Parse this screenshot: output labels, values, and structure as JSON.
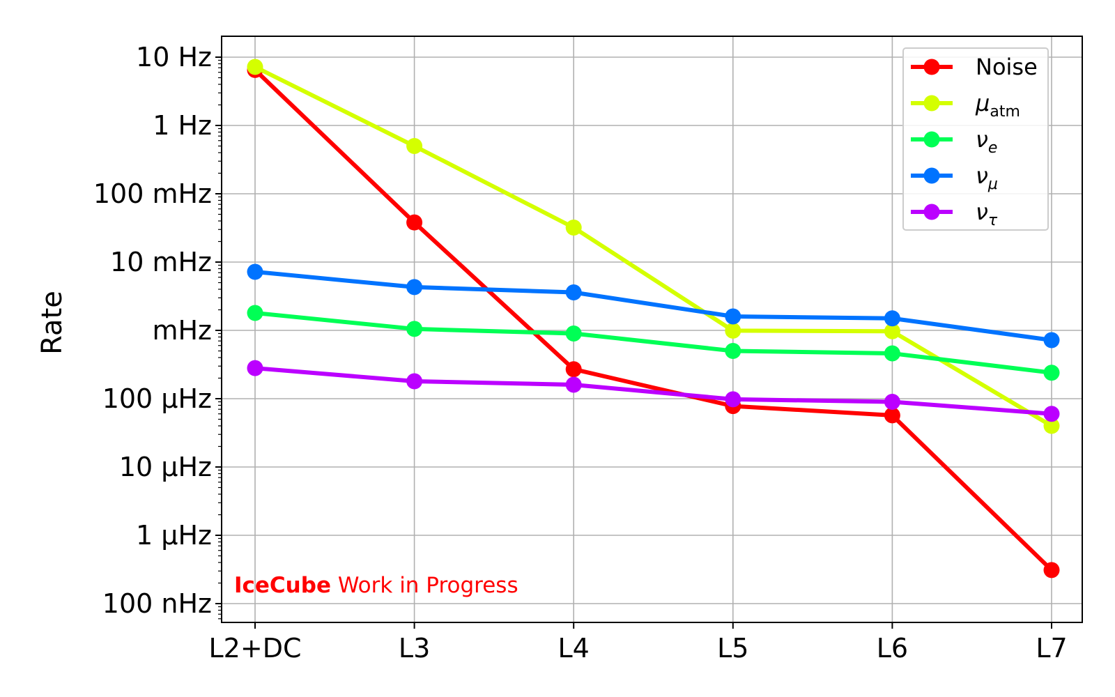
{
  "chart_data": {
    "type": "line",
    "title": "",
    "xlabel": "",
    "ylabel": "Rate",
    "yscale": "log",
    "ylim": [
      5e-08,
      20
    ],
    "grid": true,
    "legend_position": "top-right",
    "categories": [
      "L2+DC",
      "L3",
      "L4",
      "L5",
      "L6",
      "L7"
    ],
    "y_ticks": [
      {
        "value": 10,
        "label": "10 Hz"
      },
      {
        "value": 1,
        "label": "1 Hz"
      },
      {
        "value": 0.1,
        "label": "100 mHz"
      },
      {
        "value": 0.01,
        "label": "10 mHz"
      },
      {
        "value": 0.001,
        "label": "mHz"
      },
      {
        "value": 0.0001,
        "label": "100 μHz"
      },
      {
        "value": 1e-05,
        "label": "10 μHz"
      },
      {
        "value": 1e-06,
        "label": "1 μHz"
      },
      {
        "value": 1e-07,
        "label": "100 nHz"
      }
    ],
    "series": [
      {
        "name": "Noise",
        "label_main": "Noise",
        "label_sub": "",
        "color": "#ff0000",
        "values": [
          6.5,
          0.038,
          0.00027,
          7.8e-05,
          5.7e-05,
          3.1e-07
        ]
      },
      {
        "name": "μatm",
        "label_main": "μ",
        "label_sub": "atm",
        "color": "#d4ff00",
        "values": [
          7.2,
          0.5,
          0.032,
          0.00099,
          0.00097,
          4e-05
        ]
      },
      {
        "name": "νe",
        "label_main": "ν",
        "label_sub": "e",
        "color": "#00ff55",
        "values": [
          0.0018,
          0.00105,
          0.0009,
          0.0005,
          0.00046,
          0.00024
        ]
      },
      {
        "name": "νμ",
        "label_main": "ν",
        "label_sub": "μ",
        "color": "#0073ff",
        "values": [
          0.0072,
          0.0043,
          0.0036,
          0.0016,
          0.0015,
          0.00072
        ]
      },
      {
        "name": "ντ",
        "label_main": "ν",
        "label_sub": "τ",
        "color": "#bb00ff",
        "values": [
          0.00028,
          0.00018,
          0.00016,
          9.8e-05,
          9e-05,
          6e-05
        ]
      }
    ],
    "annotation": {
      "bold": "IceCube",
      "rest": " Work in Progress",
      "color": "#ff0000"
    }
  }
}
